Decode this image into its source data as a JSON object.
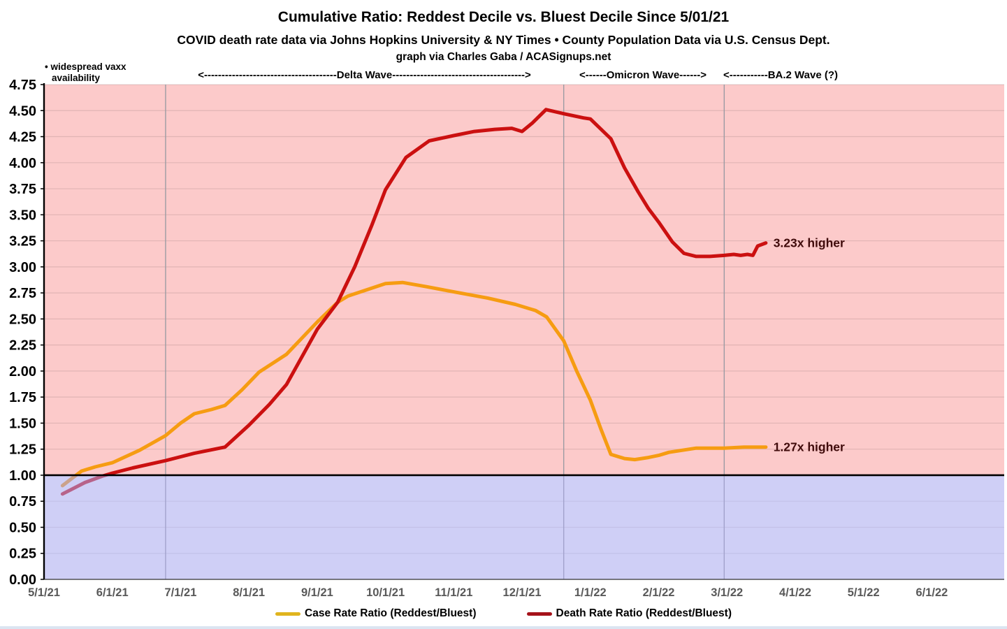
{
  "header": {
    "title": "Cumulative Ratio: Reddest Decile vs. Bluest Decile Since 5/01/21",
    "subtitle": "COVID death rate data via Johns Hopkins University & NY Times • County Population Data via U.S. Census Dept.",
    "credit": "graph via Charles Gaba / ACASignups.net"
  },
  "annotations": {
    "vaxx_note_line1": "• widespread vaxx",
    "vaxx_note_line2": "availability",
    "delta_wave": "<--------------------------------------Delta Wave-------------------------------------->",
    "omicron_wave": "<------Omicron Wave------>",
    "ba2_wave": "<-----------BA.2 Wave (?)"
  },
  "legend": [
    {
      "label": "Case Rate Ratio (Reddest/Bluest)",
      "swatch": "#E0B41E"
    },
    {
      "label": "Death Rate Ratio (Reddest/Bluest)",
      "swatch": "#A5121A"
    }
  ],
  "colors": {
    "above_one_bg": "#FCCACA",
    "below_one_overlay": "rgba(168,168,238,0.55)",
    "gridline": "rgba(90,70,70,0.16)",
    "wave_boundary": "#9B9BA3",
    "baseline": "#000000",
    "x_tick_text": "#595959",
    "end_label_text": "#400B0B"
  },
  "chart_data": {
    "type": "line",
    "title": "Cumulative Ratio: Reddest Decile vs. Bluest Decile Since 5/01/21",
    "xlabel": "",
    "ylabel": "",
    "x_unit": "months since 5/1/21",
    "xlim": [
      0,
      14.06
    ],
    "ylim": [
      0,
      4.75
    ],
    "grid": "horizontal every 0.25; vertical lines mark wave boundaries",
    "legend_position": "bottom",
    "x_tick_labels": [
      "5/1/21",
      "6/1/21",
      "7/1/21",
      "8/1/21",
      "9/1/21",
      "10/1/21",
      "11/1/21",
      "12/1/21",
      "1/1/22",
      "2/1/22",
      "3/1/22",
      "4/1/22",
      "5/1/22",
      "6/1/22"
    ],
    "y_ticks": [
      {
        "v": 0.0,
        "label": "0.00"
      },
      {
        "v": 0.25,
        "label": "0.25"
      },
      {
        "v": 0.5,
        "label": "0.50"
      },
      {
        "v": 0.75,
        "label": "0.75"
      },
      {
        "v": 1.0,
        "label": "1.00"
      },
      {
        "v": 1.25,
        "label": "1.25"
      },
      {
        "v": 1.5,
        "label": "1.50"
      },
      {
        "v": 1.75,
        "label": "1.75"
      },
      {
        "v": 2.0,
        "label": "2.00"
      },
      {
        "v": 2.25,
        "label": "2.25"
      },
      {
        "v": 2.5,
        "label": "2.50"
      },
      {
        "v": 2.75,
        "label": "2.75"
      },
      {
        "v": 3.0,
        "label": "3.00"
      },
      {
        "v": 3.25,
        "label": "3.25"
      },
      {
        "v": 3.5,
        "label": "3.50"
      },
      {
        "v": 3.75,
        "label": "3.75"
      },
      {
        "v": 4.0,
        "label": "4.00"
      },
      {
        "v": 4.25,
        "label": "4.25"
      },
      {
        "v": 4.5,
        "label": "4.50"
      },
      {
        "v": 4.75,
        "label": "4.75"
      }
    ],
    "wave_boundaries_months": [
      1.78,
      7.61,
      9.96
    ],
    "series": [
      {
        "id": "case-rate-ratio",
        "name": "Case Rate Ratio (Reddest/Bluest)",
        "color": "#F69C12",
        "end_label": "1.27x higher",
        "end_label_pos": [
          10.68,
          1.27
        ],
        "points": [
          [
            0.27,
            0.9
          ],
          [
            0.55,
            1.04
          ],
          [
            0.75,
            1.08
          ],
          [
            1.0,
            1.12
          ],
          [
            1.4,
            1.24
          ],
          [
            1.78,
            1.38
          ],
          [
            2.0,
            1.5
          ],
          [
            2.2,
            1.59
          ],
          [
            2.45,
            1.63
          ],
          [
            2.65,
            1.67
          ],
          [
            2.9,
            1.82
          ],
          [
            3.15,
            1.99
          ],
          [
            3.55,
            2.16
          ],
          [
            4.0,
            2.47
          ],
          [
            4.3,
            2.66
          ],
          [
            4.45,
            2.72
          ],
          [
            5.0,
            2.84
          ],
          [
            5.25,
            2.85
          ],
          [
            5.6,
            2.81
          ],
          [
            6.0,
            2.76
          ],
          [
            6.5,
            2.7
          ],
          [
            6.9,
            2.64
          ],
          [
            7.2,
            2.58
          ],
          [
            7.36,
            2.52
          ],
          [
            7.61,
            2.29
          ],
          [
            7.8,
            2.0
          ],
          [
            8.0,
            1.72
          ],
          [
            8.15,
            1.45
          ],
          [
            8.3,
            1.2
          ],
          [
            8.5,
            1.16
          ],
          [
            8.65,
            1.15
          ],
          [
            8.85,
            1.17
          ],
          [
            9.0,
            1.19
          ],
          [
            9.15,
            1.22
          ],
          [
            9.35,
            1.24
          ],
          [
            9.55,
            1.26
          ],
          [
            9.96,
            1.26
          ],
          [
            10.25,
            1.27
          ],
          [
            10.57,
            1.27
          ]
        ]
      },
      {
        "id": "death-rate-ratio",
        "name": "Death Rate Ratio (Reddest/Bluest)",
        "color": "#CB1010",
        "end_label": "3.23x higher",
        "end_label_pos": [
          10.68,
          3.23
        ],
        "points": [
          [
            0.27,
            0.82
          ],
          [
            0.6,
            0.93
          ],
          [
            0.85,
            0.99
          ],
          [
            1.0,
            1.02
          ],
          [
            1.3,
            1.07
          ],
          [
            1.78,
            1.14
          ],
          [
            2.2,
            1.21
          ],
          [
            2.65,
            1.27
          ],
          [
            3.0,
            1.48
          ],
          [
            3.3,
            1.68
          ],
          [
            3.55,
            1.87
          ],
          [
            4.0,
            2.4
          ],
          [
            4.3,
            2.66
          ],
          [
            4.55,
            3.0
          ],
          [
            4.8,
            3.4
          ],
          [
            5.0,
            3.74
          ],
          [
            5.3,
            4.05
          ],
          [
            5.64,
            4.21
          ],
          [
            6.0,
            4.26
          ],
          [
            6.3,
            4.3
          ],
          [
            6.6,
            4.32
          ],
          [
            6.85,
            4.33
          ],
          [
            7.0,
            4.3
          ],
          [
            7.15,
            4.38
          ],
          [
            7.35,
            4.51
          ],
          [
            7.61,
            4.47
          ],
          [
            7.9,
            4.43
          ],
          [
            8.0,
            4.42
          ],
          [
            8.3,
            4.23
          ],
          [
            8.5,
            3.95
          ],
          [
            8.7,
            3.72
          ],
          [
            8.85,
            3.56
          ],
          [
            9.0,
            3.43
          ],
          [
            9.2,
            3.24
          ],
          [
            9.37,
            3.13
          ],
          [
            9.55,
            3.1
          ],
          [
            9.75,
            3.1
          ],
          [
            9.96,
            3.11
          ],
          [
            10.1,
            3.12
          ],
          [
            10.2,
            3.11
          ],
          [
            10.3,
            3.12
          ],
          [
            10.38,
            3.11
          ],
          [
            10.45,
            3.2
          ],
          [
            10.57,
            3.23
          ]
        ]
      }
    ]
  }
}
